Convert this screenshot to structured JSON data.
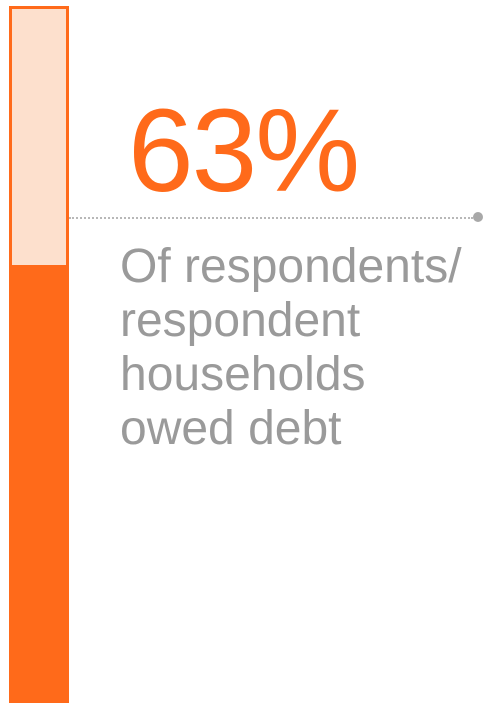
{
  "chart_data": {
    "type": "bar",
    "value_percent": 63,
    "value_label": "63%",
    "caption_lines": [
      "Of respondents/",
      "respondent",
      "households",
      "owed debt"
    ],
    "ylim": [
      0,
      100
    ]
  },
  "colors": {
    "accent": "#ff6a1a",
    "bar_track": "#fde0cd",
    "caption_text": "#9a9a9a",
    "leader_line": "#b8b8b8"
  }
}
